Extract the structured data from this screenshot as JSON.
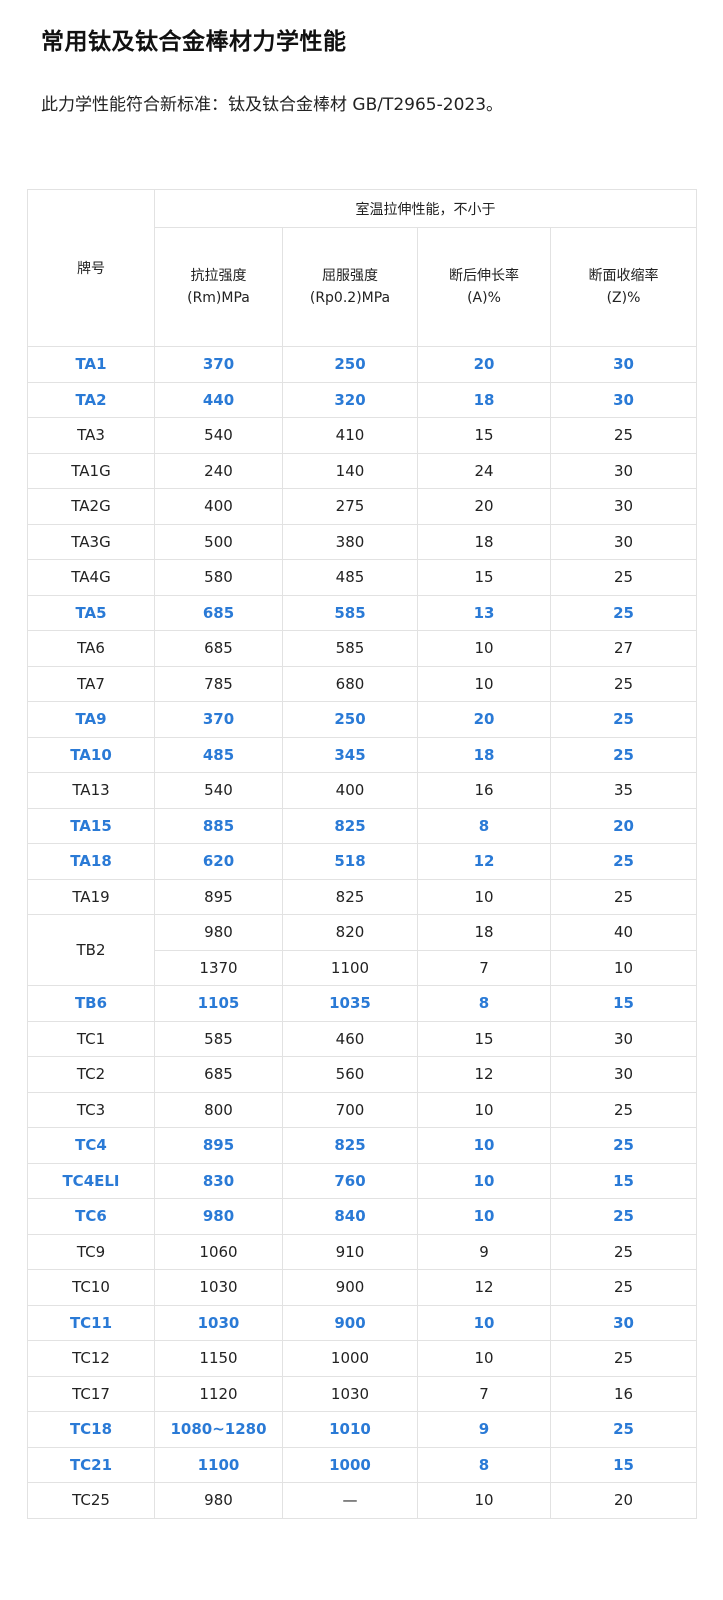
{
  "title": "常用钛及钛合金棒材力学性能",
  "subtitle": "此力学性能符合新标准：钛及钛合金棒材  GB/T2965-2023。",
  "colors": {
    "highlight": "#2a7ad6",
    "text": "#222222",
    "border": "#e2e2e2"
  },
  "table": {
    "header_grade": "牌号",
    "header_group": "室温拉伸性能，不小于",
    "columns": [
      "抗拉强度(Rm)MPa",
      "屈服强度(Rp0.2)MPa",
      "断后伸长率(A)%",
      "断面收缩率(Z)%"
    ],
    "rows": [
      {
        "grade": "TA1",
        "values": [
          "370",
          "250",
          "20",
          "30"
        ],
        "highlight": true
      },
      {
        "grade": "TA2",
        "values": [
          "440",
          "320",
          "18",
          "30"
        ],
        "highlight": true
      },
      {
        "grade": "TA3",
        "values": [
          "540",
          "410",
          "15",
          "25"
        ],
        "highlight": false
      },
      {
        "grade": "TA1G",
        "values": [
          "240",
          "140",
          "24",
          "30"
        ],
        "highlight": false
      },
      {
        "grade": "TA2G",
        "values": [
          "400",
          "275",
          "20",
          "30"
        ],
        "highlight": false
      },
      {
        "grade": "TA3G",
        "values": [
          "500",
          "380",
          "18",
          "30"
        ],
        "highlight": false
      },
      {
        "grade": "TA4G",
        "values": [
          "580",
          "485",
          "15",
          "25"
        ],
        "highlight": false
      },
      {
        "grade": "TA5",
        "values": [
          "685",
          "585",
          "13",
          "25"
        ],
        "highlight": true
      },
      {
        "grade": "TA6",
        "values": [
          "685",
          "585",
          "10",
          "27"
        ],
        "highlight": false
      },
      {
        "grade": "TA7",
        "values": [
          "785",
          "680",
          "10",
          "25"
        ],
        "highlight": false
      },
      {
        "grade": "TA9",
        "values": [
          "370",
          "250",
          "20",
          "25"
        ],
        "highlight": true
      },
      {
        "grade": "TA10",
        "values": [
          "485",
          "345",
          "18",
          "25"
        ],
        "highlight": true
      },
      {
        "grade": "TA13",
        "values": [
          "540",
          "400",
          "16",
          "35"
        ],
        "highlight": false
      },
      {
        "grade": "TA15",
        "values": [
          "885",
          "825",
          "8",
          "20"
        ],
        "highlight": true
      },
      {
        "grade": "TA18",
        "values": [
          "620",
          "518",
          "12",
          "25"
        ],
        "highlight": true
      },
      {
        "grade": "TA19",
        "values": [
          "895",
          "825",
          "10",
          "25"
        ],
        "highlight": false
      },
      {
        "grade": "TB2",
        "values": [
          "980",
          "820",
          "18",
          "40"
        ],
        "highlight": false,
        "rowspan": 2
      },
      {
        "grade": null,
        "values": [
          "1370",
          "1100",
          "7",
          "10"
        ],
        "highlight": false
      },
      {
        "grade": "TB6",
        "values": [
          "1105",
          "1035",
          "8",
          "15"
        ],
        "highlight": true
      },
      {
        "grade": "TC1",
        "values": [
          "585",
          "460",
          "15",
          "30"
        ],
        "highlight": false
      },
      {
        "grade": "TC2",
        "values": [
          "685",
          "560",
          "12",
          "30"
        ],
        "highlight": false
      },
      {
        "grade": "TC3",
        "values": [
          "800",
          "700",
          "10",
          "25"
        ],
        "highlight": false
      },
      {
        "grade": "TC4",
        "values": [
          "895",
          "825",
          "10",
          "25"
        ],
        "highlight": true
      },
      {
        "grade": "TC4ELI",
        "values": [
          "830",
          "760",
          "10",
          "15"
        ],
        "highlight": true
      },
      {
        "grade": "TC6",
        "values": [
          "980",
          "840",
          "10",
          "25"
        ],
        "highlight": true
      },
      {
        "grade": "TC9",
        "values": [
          "1060",
          "910",
          "9",
          "25"
        ],
        "highlight": false
      },
      {
        "grade": "TC10",
        "values": [
          "1030",
          "900",
          "12",
          "25"
        ],
        "highlight": false
      },
      {
        "grade": "TC11",
        "values": [
          "1030",
          "900",
          "10",
          "30"
        ],
        "highlight": true
      },
      {
        "grade": "TC12",
        "values": [
          "1150",
          "1000",
          "10",
          "25"
        ],
        "highlight": false
      },
      {
        "grade": "TC17",
        "values": [
          "1120",
          "1030",
          "7",
          "16"
        ],
        "highlight": false
      },
      {
        "grade": "TC18",
        "values": [
          "1080~1280",
          "1010",
          "9",
          "25"
        ],
        "highlight": true
      },
      {
        "grade": "TC21",
        "values": [
          "1100",
          "1000",
          "8",
          "15"
        ],
        "highlight": true
      },
      {
        "grade": "TC25",
        "values": [
          "980",
          "—",
          "10",
          "20"
        ],
        "highlight": false
      }
    ]
  }
}
